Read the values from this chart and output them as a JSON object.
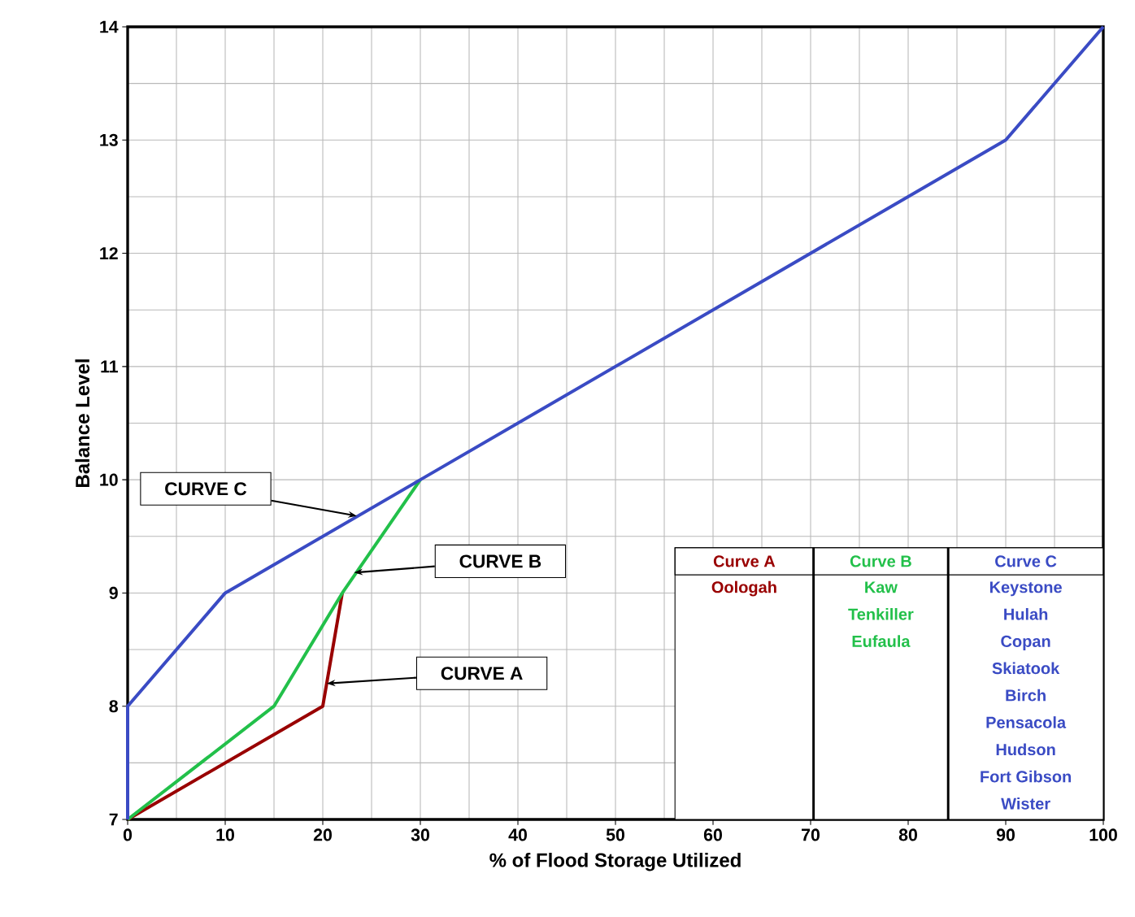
{
  "chart_data": {
    "type": "line",
    "xlabel": "% of Flood Storage Utilized",
    "ylabel": "Balance Level",
    "xlim": [
      0,
      100
    ],
    "ylim": [
      7,
      14
    ],
    "xticks": [
      0,
      10,
      20,
      30,
      40,
      50,
      60,
      70,
      80,
      90,
      100
    ],
    "yticks": [
      7,
      8,
      9,
      10,
      11,
      12,
      13,
      14
    ],
    "grid": true,
    "marker": "none",
    "line_style": "solid",
    "series": [
      {
        "name": "Curve A",
        "color": "#990000",
        "x": [
          0,
          20,
          22
        ],
        "values": [
          7,
          8,
          9
        ]
      },
      {
        "name": "Curve B",
        "color": "#22c04a",
        "x": [
          0,
          15,
          22,
          30
        ],
        "values": [
          7,
          8,
          9,
          10
        ]
      },
      {
        "name": "Curve C",
        "color": "#3a4bc4",
        "x": [
          0,
          0,
          10,
          30,
          90,
          100
        ],
        "values": [
          7,
          8,
          9,
          10,
          13,
          14
        ]
      }
    ],
    "annotations": [
      "CURVE C",
      "CURVE B",
      "CURVE A",
      "Oologah",
      "Kaw",
      "Tenkiller",
      "Eufaula",
      "Keystone",
      "Hulah",
      "Copan",
      "Skiatook",
      "Birch",
      "Pensacola",
      "Hudson",
      "Fort Gibson",
      "Wister"
    ]
  }
}
